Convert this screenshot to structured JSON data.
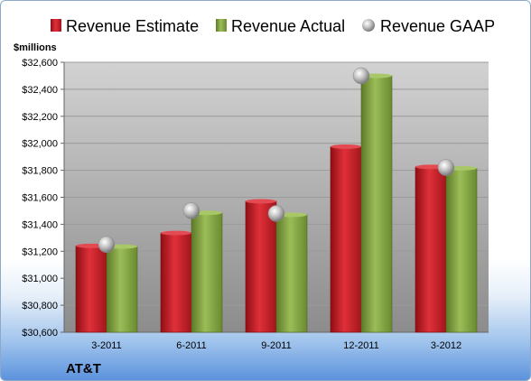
{
  "chart_data": {
    "type": "bar",
    "unit_label": "$millions",
    "company": "AT&T",
    "categories": [
      "3-2011",
      "6-2011",
      "9-2011",
      "12-2011",
      "3-2012"
    ],
    "series": [
      {
        "name": "Revenue Estimate",
        "kind": "bar",
        "color": "#c81e24",
        "values": [
          31240,
          31335,
          31570,
          31975,
          31825
        ]
      },
      {
        "name": "Revenue Actual",
        "kind": "bar",
        "color": "#7a9a3a",
        "values": [
          31235,
          31485,
          31470,
          32500,
          31815
        ]
      },
      {
        "name": "Revenue GAAP",
        "kind": "marker",
        "color": "#bfbfbf",
        "values": [
          31250,
          31500,
          31480,
          32500,
          31820
        ]
      }
    ],
    "yticks": [
      "$30,600",
      "$30,800",
      "$31,000",
      "$31,200",
      "$31,400",
      "$31,600",
      "$31,800",
      "$32,000",
      "$32,200",
      "$32,400",
      "$32,600"
    ],
    "ylim": [
      30600,
      32600
    ],
    "grid": true,
    "legend_position": "top"
  }
}
